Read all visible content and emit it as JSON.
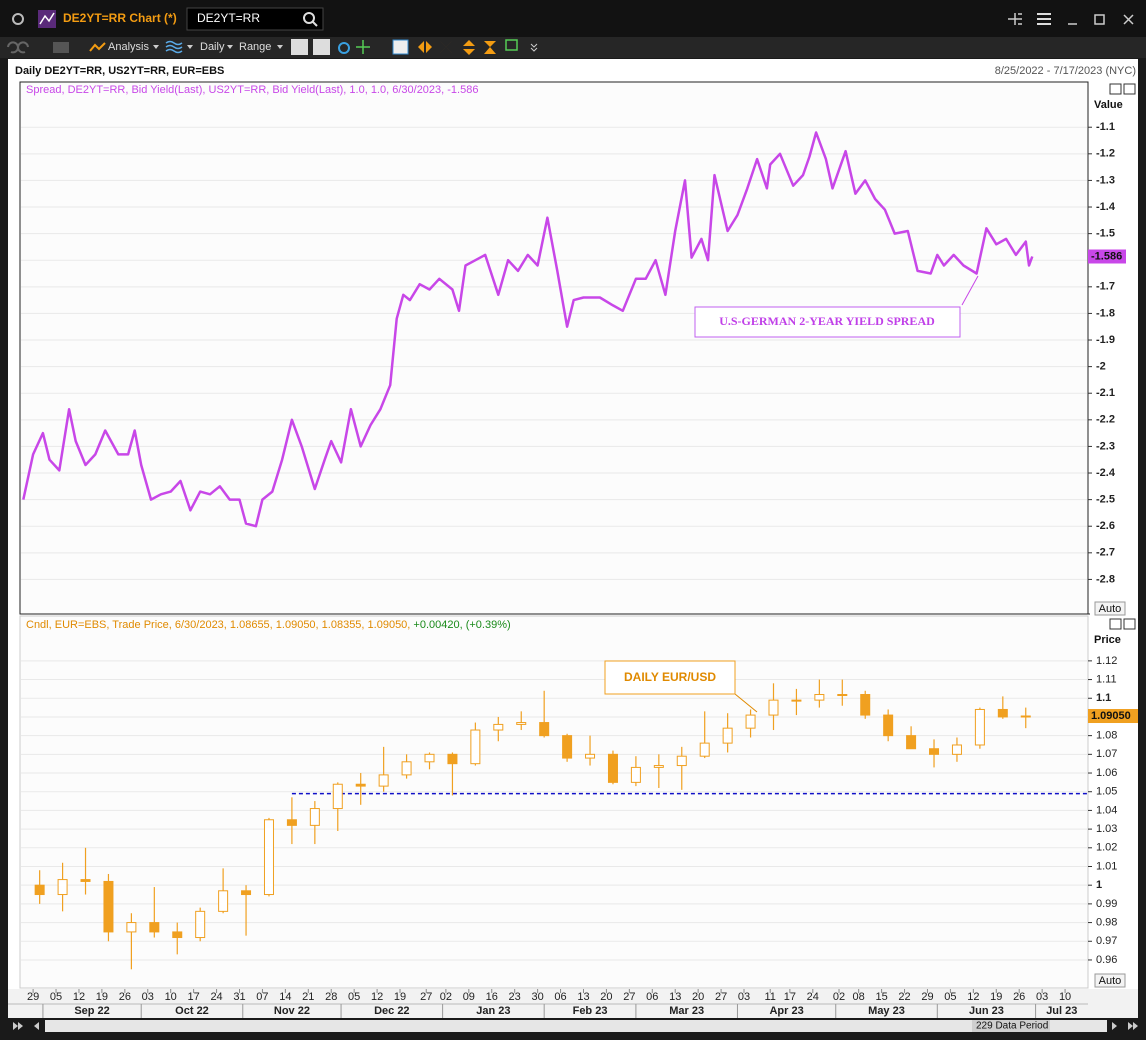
{
  "window": {
    "title": "DE2YT=RR Chart (*)",
    "search": "DE2YT=RR"
  },
  "toolbar": {
    "analysis": "Analysis",
    "interval": "Daily",
    "range": "Range"
  },
  "header": {
    "instruments": "Daily DE2YT=RR, US2YT=RR, EUR=EBS",
    "period": "8/25/2022 - 7/17/2023 (NYC)"
  },
  "x_axis": {
    "xlim": [
      "2022-08-25",
      "2023-07-17"
    ],
    "xticks": [
      {
        "value": "2022-08-29",
        "label": "29"
      },
      {
        "value": "2022-09-05",
        "label": "05"
      },
      {
        "value": "2022-09-12",
        "label": "12"
      },
      {
        "value": "2022-09-19",
        "label": "19"
      },
      {
        "value": "2022-09-26",
        "label": "26"
      },
      {
        "value": "2022-10-03",
        "label": "03"
      },
      {
        "value": "2022-10-10",
        "label": "10"
      },
      {
        "value": "2022-10-17",
        "label": "17"
      },
      {
        "value": "2022-10-24",
        "label": "24"
      },
      {
        "value": "2022-10-31",
        "label": "31"
      },
      {
        "value": "2022-11-07",
        "label": "07"
      },
      {
        "value": "2022-11-14",
        "label": "14"
      },
      {
        "value": "2022-11-21",
        "label": "21"
      },
      {
        "value": "2022-11-28",
        "label": "28"
      },
      {
        "value": "2022-12-05",
        "label": "05"
      },
      {
        "value": "2022-12-12",
        "label": "12"
      },
      {
        "value": "2022-12-19",
        "label": "19"
      },
      {
        "value": "2022-12-27",
        "label": "27"
      },
      {
        "value": "2023-01-02",
        "label": "02"
      },
      {
        "value": "2023-01-09",
        "label": "09"
      },
      {
        "value": "2023-01-16",
        "label": "16"
      },
      {
        "value": "2023-01-23",
        "label": "23"
      },
      {
        "value": "2023-01-30",
        "label": "30"
      },
      {
        "value": "2023-02-06",
        "label": "06"
      },
      {
        "value": "2023-02-13",
        "label": "13"
      },
      {
        "value": "2023-02-20",
        "label": "20"
      },
      {
        "value": "2023-02-27",
        "label": "27"
      },
      {
        "value": "2023-03-06",
        "label": "06"
      },
      {
        "value": "2023-03-13",
        "label": "13"
      },
      {
        "value": "2023-03-20",
        "label": "20"
      },
      {
        "value": "2023-03-27",
        "label": "27"
      },
      {
        "value": "2023-04-03",
        "label": "03"
      },
      {
        "value": "2023-04-11",
        "label": "11"
      },
      {
        "value": "2023-04-17",
        "label": "17"
      },
      {
        "value": "2023-04-24",
        "label": "24"
      },
      {
        "value": "2023-05-02",
        "label": "02"
      },
      {
        "value": "2023-05-08",
        "label": "08"
      },
      {
        "value": "2023-05-15",
        "label": "15"
      },
      {
        "value": "2023-05-22",
        "label": "22"
      },
      {
        "value": "2023-05-29",
        "label": "29"
      },
      {
        "value": "2023-06-05",
        "label": "05"
      },
      {
        "value": "2023-06-12",
        "label": "12"
      },
      {
        "value": "2023-06-19",
        "label": "19"
      },
      {
        "value": "2023-06-26",
        "label": "26"
      },
      {
        "value": "2023-07-03",
        "label": "03"
      },
      {
        "value": "2023-07-10",
        "label": "10"
      }
    ],
    "months": [
      {
        "value": "2022-09",
        "label": "Sep 22"
      },
      {
        "value": "2022-10",
        "label": "Oct 22"
      },
      {
        "value": "2022-11",
        "label": "Nov 22"
      },
      {
        "value": "2022-12",
        "label": "Dec 22"
      },
      {
        "value": "2023-01",
        "label": "Jan 23"
      },
      {
        "value": "2023-02",
        "label": "Feb 23"
      },
      {
        "value": "2023-03",
        "label": "Mar 23"
      },
      {
        "value": "2023-04",
        "label": "Apr 23"
      },
      {
        "value": "2023-05",
        "label": "May 23"
      },
      {
        "value": "2023-06",
        "label": "Jun 23"
      },
      {
        "value": "2023-07",
        "label": "Jul 23"
      }
    ]
  },
  "spread_chart": {
    "type": "line",
    "legend": "Spread, DE2YT=RR, Bid Yield(Last), US2YT=RR, Bid Yield(Last),  1.0, 1.0, 6/30/2023, -1.586",
    "axis_title": "Value",
    "scale_mode": "Auto",
    "color": "#c847e8",
    "grid": true,
    "annotation": "U.S-GERMAN 2-YEAR YIELD SPREAD",
    "last_value": -1.586,
    "ylim": [
      -2.93,
      -0.93
    ],
    "yticks": [
      -1.1,
      -1.2,
      -1.3,
      -1.4,
      -1.5,
      -1.6,
      -1.7,
      -1.8,
      -1.9,
      -2,
      -2.1,
      -2.2,
      -2.3,
      -2.4,
      -2.5,
      -2.6,
      -2.7,
      -2.8
    ],
    "x": [
      "2022-08-26",
      "2022-08-29",
      "2022-09-01",
      "2022-09-03",
      "2022-09-06",
      "2022-09-09",
      "2022-09-11",
      "2022-09-14",
      "2022-09-17",
      "2022-09-20",
      "2022-09-24",
      "2022-09-27",
      "2022-09-29",
      "2022-10-01",
      "2022-10-04",
      "2022-10-07",
      "2022-10-10",
      "2022-10-13",
      "2022-10-16",
      "2022-10-19",
      "2022-10-22",
      "2022-10-25",
      "2022-10-28",
      "2022-10-31",
      "2022-11-02",
      "2022-11-05",
      "2022-11-07",
      "2022-11-10",
      "2022-11-13",
      "2022-11-16",
      "2022-11-19",
      "2022-11-23",
      "2022-11-26",
      "2022-11-28",
      "2022-12-01",
      "2022-12-04",
      "2022-12-07",
      "2022-12-10",
      "2022-12-13",
      "2022-12-16",
      "2022-12-18",
      "2022-12-20",
      "2022-12-22",
      "2022-12-25",
      "2022-12-28",
      "2022-12-31",
      "2023-01-04",
      "2023-01-06",
      "2023-01-08",
      "2023-01-11",
      "2023-01-14",
      "2023-01-18",
      "2023-01-21",
      "2023-01-24",
      "2023-01-27",
      "2023-01-30",
      "2023-02-02",
      "2023-02-05",
      "2023-02-08",
      "2023-02-10",
      "2023-02-13",
      "2023-02-18",
      "2023-02-22",
      "2023-02-25",
      "2023-03-01",
      "2023-03-04",
      "2023-03-07",
      "2023-03-10",
      "2023-03-13",
      "2023-03-16",
      "2023-03-18",
      "2023-03-21",
      "2023-03-23",
      "2023-03-25",
      "2023-03-29",
      "2023-04-01",
      "2023-04-04",
      "2023-04-07",
      "2023-04-10",
      "2023-04-11",
      "2023-04-14",
      "2023-04-18",
      "2023-04-21",
      "2023-04-23",
      "2023-04-25",
      "2023-04-28",
      "2023-04-30",
      "2023-05-04",
      "2023-05-07",
      "2023-05-10",
      "2023-05-13",
      "2023-05-16",
      "2023-05-19",
      "2023-05-23",
      "2023-05-26",
      "2023-05-30",
      "2023-06-01",
      "2023-06-03",
      "2023-06-06",
      "2023-06-09",
      "2023-06-13",
      "2023-06-16",
      "2023-06-19",
      "2023-06-22",
      "2023-06-25",
      "2023-06-28",
      "2023-06-29",
      "2023-06-30"
    ],
    "values": [
      -2.5,
      -2.33,
      -2.25,
      -2.35,
      -2.39,
      -2.16,
      -2.28,
      -2.37,
      -2.33,
      -2.24,
      -2.33,
      -2.33,
      -2.24,
      -2.37,
      -2.5,
      -2.48,
      -2.47,
      -2.43,
      -2.54,
      -2.47,
      -2.48,
      -2.45,
      -2.5,
      -2.5,
      -2.59,
      -2.6,
      -2.5,
      -2.47,
      -2.35,
      -2.2,
      -2.3,
      -2.46,
      -2.35,
      -2.28,
      -2.36,
      -2.16,
      -2.3,
      -2.22,
      -2.16,
      -2.07,
      -1.82,
      -1.73,
      -1.75,
      -1.69,
      -1.71,
      -1.67,
      -1.71,
      -1.79,
      -1.62,
      -1.6,
      -1.58,
      -1.73,
      -1.6,
      -1.64,
      -1.58,
      -1.62,
      -1.44,
      -1.64,
      -1.85,
      -1.75,
      -1.74,
      -1.74,
      -1.77,
      -1.79,
      -1.67,
      -1.67,
      -1.6,
      -1.73,
      -1.49,
      -1.3,
      -1.59,
      -1.52,
      -1.6,
      -1.28,
      -1.49,
      -1.43,
      -1.33,
      -1.22,
      -1.33,
      -1.24,
      -1.2,
      -1.32,
      -1.28,
      -1.21,
      -1.12,
      -1.22,
      -1.33,
      -1.19,
      -1.35,
      -1.3,
      -1.37,
      -1.41,
      -1.5,
      -1.49,
      -1.64,
      -1.65,
      -1.58,
      -1.62,
      -1.58,
      -1.62,
      -1.65,
      -1.48,
      -1.54,
      -1.52,
      -1.58,
      -1.53,
      -1.62,
      -1.586
    ]
  },
  "price_chart": {
    "type": "candlestick",
    "legend": "Cndl, EUR=EBS, Trade Price, 6/30/2023, 1.08655, 1.09050, 1.08355, 1.09050, ",
    "legend_change": "+0.00420, (+0.39%)",
    "axis_title": "Price",
    "scale_mode": "Auto",
    "color": "#f0a020",
    "grid": true,
    "annotation": "DAILY EUR/USD",
    "last_price": {
      "value": 1.0905,
      "label": "1.09050"
    },
    "reference_line": {
      "value": 1.049,
      "start": "2022-11-16",
      "color": "#1010c8"
    },
    "ylim": [
      0.945,
      1.144
    ],
    "yticks": [
      0.96,
      0.97,
      0.98,
      0.99,
      1,
      1.01,
      1.02,
      1.03,
      1.04,
      1.05,
      1.06,
      1.07,
      1.08,
      1.09,
      1.1,
      1.11,
      1.12
    ],
    "x": [
      "2022-08-31",
      "2022-09-07",
      "2022-09-14",
      "2022-09-21",
      "2022-09-28",
      "2022-10-05",
      "2022-10-12",
      "2022-10-19",
      "2022-10-26",
      "2022-11-02",
      "2022-11-09",
      "2022-11-16",
      "2022-11-23",
      "2022-11-30",
      "2022-12-07",
      "2022-12-14",
      "2022-12-21",
      "2022-12-28",
      "2023-01-04",
      "2023-01-11",
      "2023-01-18",
      "2023-01-25",
      "2023-02-01",
      "2023-02-08",
      "2023-02-15",
      "2023-02-22",
      "2023-03-01",
      "2023-03-08",
      "2023-03-15",
      "2023-03-22",
      "2023-03-29",
      "2023-04-05",
      "2023-04-12",
      "2023-04-19",
      "2023-04-26",
      "2023-05-03",
      "2023-05-10",
      "2023-05-17",
      "2023-05-24",
      "2023-05-31",
      "2023-06-07",
      "2023-06-14",
      "2023-06-21",
      "2023-06-28"
    ],
    "open": [
      1.0,
      0.995,
      1.003,
      1.002,
      0.975,
      0.98,
      0.975,
      0.972,
      0.986,
      0.997,
      0.995,
      1.035,
      1.032,
      1.041,
      1.054,
      1.053,
      1.059,
      1.066,
      1.07,
      1.065,
      1.083,
      1.086,
      1.087,
      1.08,
      1.068,
      1.07,
      1.055,
      1.063,
      1.064,
      1.069,
      1.076,
      1.084,
      1.091,
      1.099,
      1.099,
      1.102,
      1.102,
      1.091,
      1.08,
      1.073,
      1.07,
      1.075,
      1.094,
      1.09
    ],
    "high": [
      1.008,
      1.012,
      1.02,
      1.006,
      0.985,
      0.999,
      0.98,
      0.988,
      1.009,
      1.0,
      1.036,
      1.047,
      1.045,
      1.055,
      1.06,
      1.074,
      1.07,
      1.071,
      1.071,
      1.087,
      1.09,
      1.093,
      1.104,
      1.081,
      1.08,
      1.072,
      1.069,
      1.07,
      1.074,
      1.093,
      1.092,
      1.094,
      1.108,
      1.105,
      1.11,
      1.11,
      1.104,
      1.094,
      1.085,
      1.078,
      1.079,
      1.095,
      1.101,
      1.095
    ],
    "low": [
      0.99,
      0.986,
      0.995,
      0.97,
      0.955,
      0.972,
      0.963,
      0.97,
      0.985,
      0.973,
      0.994,
      1.022,
      1.022,
      1.029,
      1.043,
      1.05,
      1.057,
      1.062,
      1.048,
      1.064,
      1.077,
      1.083,
      1.079,
      1.066,
      1.064,
      1.054,
      1.053,
      1.052,
      1.051,
      1.068,
      1.071,
      1.079,
      1.083,
      1.091,
      1.095,
      1.096,
      1.089,
      1.077,
      1.073,
      1.063,
      1.066,
      1.073,
      1.089,
      1.084
    ],
    "close": [
      0.995,
      1.003,
      1.002,
      0.975,
      0.98,
      0.975,
      0.972,
      0.986,
      0.997,
      0.995,
      1.035,
      1.032,
      1.041,
      1.054,
      1.053,
      1.059,
      1.066,
      1.07,
      1.065,
      1.083,
      1.086,
      1.087,
      1.08,
      1.068,
      1.07,
      1.055,
      1.063,
      1.064,
      1.069,
      1.076,
      1.084,
      1.091,
      1.099,
      1.099,
      1.102,
      1.102,
      1.091,
      1.08,
      1.073,
      1.07,
      1.075,
      1.094,
      1.09,
      1.0905
    ]
  },
  "footer": {
    "data_period": "229 Data Period"
  }
}
